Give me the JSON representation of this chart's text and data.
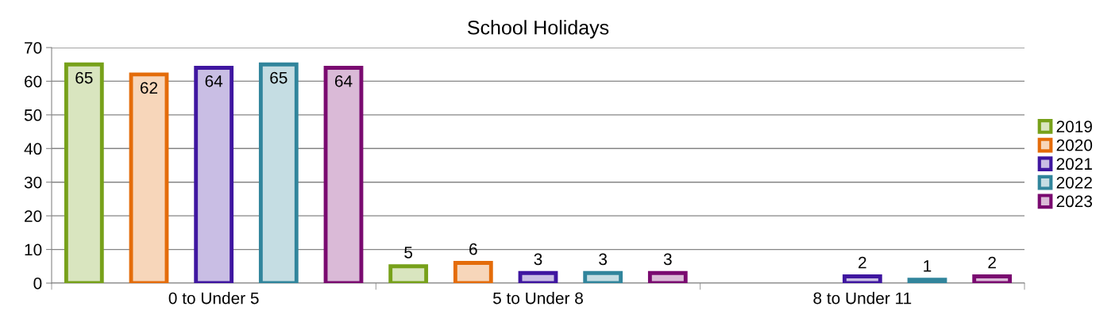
{
  "chart_data": {
    "type": "bar",
    "title": "School Holidays",
    "categories": [
      "0 to Under 5",
      "5 to Under 8",
      "8 to Under 11"
    ],
    "series": [
      {
        "name": "2019",
        "color": "#77a11a",
        "values": [
          65,
          5,
          null
        ]
      },
      {
        "name": "2020",
        "color": "#e46c0a",
        "values": [
          62,
          6,
          null
        ]
      },
      {
        "name": "2021",
        "color": "#3f16a0",
        "values": [
          64,
          3,
          2
        ]
      },
      {
        "name": "2022",
        "color": "#31859c",
        "values": [
          65,
          3,
          1
        ]
      },
      {
        "name": "2023",
        "color": "#7a0a70",
        "values": [
          64,
          3,
          2
        ]
      }
    ],
    "ylim": [
      0,
      70
    ],
    "yticks": [
      0,
      10,
      20,
      30,
      40,
      50,
      60,
      70
    ],
    "grid": "y",
    "legend": "right",
    "data_labels": true
  }
}
